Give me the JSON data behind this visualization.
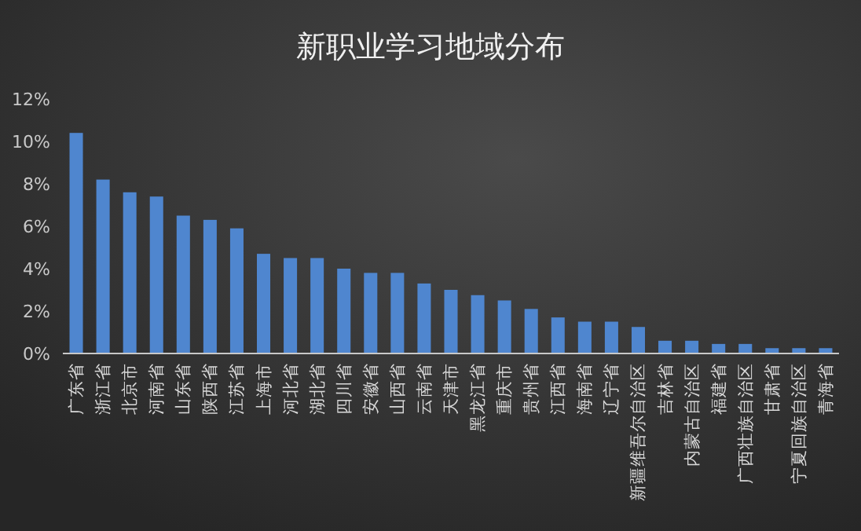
{
  "chart_data": {
    "type": "bar",
    "title": "新职业学习地域分布",
    "categories": [
      "广东省",
      "浙江省",
      "北京市",
      "河南省",
      "山东省",
      "陕西省",
      "江苏省",
      "上海市",
      "河北省",
      "湖北省",
      "四川省",
      "安徽省",
      "山西省",
      "云南省",
      "天津市",
      "黑龙江省",
      "重庆市",
      "贵州省",
      "江西省",
      "海南省",
      "辽宁省",
      "新疆维吾尔自治区",
      "吉林省",
      "内蒙古自治区",
      "福建省",
      "广西壮族自治区",
      "甘肃省",
      "宁夏回族自治区",
      "青海省"
    ],
    "values": [
      10.4,
      8.2,
      7.6,
      7.4,
      6.5,
      6.3,
      5.9,
      4.7,
      4.5,
      4.5,
      4.0,
      3.8,
      3.8,
      3.3,
      3.0,
      2.75,
      2.5,
      2.1,
      1.7,
      1.5,
      1.5,
      1.25,
      0.6,
      0.6,
      0.45,
      0.45,
      0.25,
      0.25,
      0.25
    ],
    "color": "#4f86cf",
    "ylim": [
      0,
      12
    ],
    "yticks": [
      {
        "value": 0,
        "label": "0%"
      },
      {
        "value": 2,
        "label": "2%"
      },
      {
        "value": 4,
        "label": "4%"
      },
      {
        "value": 6,
        "label": "6%"
      },
      {
        "value": 8,
        "label": "8%"
      },
      {
        "value": 10,
        "label": "10%"
      },
      {
        "value": 12,
        "label": "12%"
      }
    ],
    "grid": false
  }
}
